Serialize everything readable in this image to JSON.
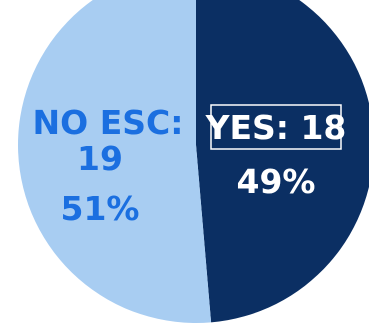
{
  "chart_data": {
    "type": "pie",
    "slices": [
      {
        "label": "YES",
        "value": 18,
        "percent": "49%",
        "color": "#0b2f63",
        "text_color": "#ffffff",
        "boxed": true
      },
      {
        "label": "NO ESC",
        "value": 19,
        "percent": "51%",
        "color": "#a8cdf2",
        "text_color": "#1b6fe0",
        "boxed": false
      }
    ],
    "start_angle_deg": 0,
    "direction": "clockwise",
    "legend": "none"
  },
  "labels": {
    "yes": {
      "line1": "YES: 18",
      "line2": "49%"
    },
    "no": {
      "line1": "NO ESC:",
      "line2": "19",
      "line3": "51%"
    }
  }
}
